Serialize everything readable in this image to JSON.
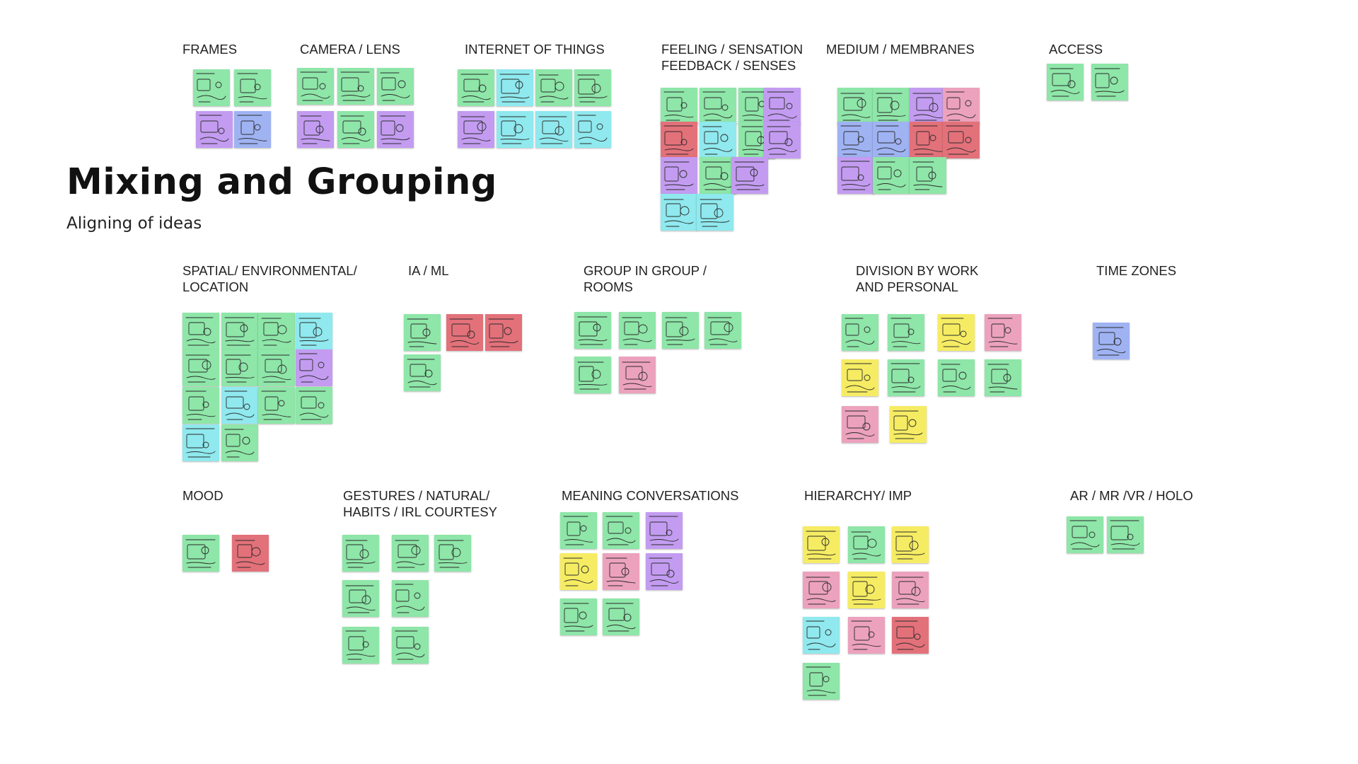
{
  "title": "Mixing and Grouping",
  "subtitle": "Aligning of ideas",
  "colors": {
    "green": "#8ee6a8",
    "cyan": "#8fe9ee",
    "purple": "#c39cf1",
    "blue": "#9fb3f3",
    "red": "#e3717a",
    "yellow": "#f6ec63",
    "pink": "#eca2bd"
  },
  "groups": [
    {
      "label": "FRAMES"
    },
    {
      "label": "CAMERA / LENS"
    },
    {
      "label": "INTERNET OF THINGS"
    },
    {
      "label": "FEELING / SENSATION\nFEEDBACK / SENSES"
    },
    {
      "label": "MEDIUM / MEMBRANES"
    },
    {
      "label": "ACCESS"
    },
    {
      "label": "SPATIAL/ ENVIRONMENTAL/\nLOCATION"
    },
    {
      "label": "IA / ML"
    },
    {
      "label": "GROUP IN GROUP /\nROOMS"
    },
    {
      "label": "DIVISION BY WORK\nAND PERSONAL"
    },
    {
      "label": "TIME ZONES"
    },
    {
      "label": "MOOD"
    },
    {
      "label": "GESTURES / NATURAL/\nHABITS / IRL COURTESY"
    },
    {
      "label": "MEANING CONVERSATIONS"
    },
    {
      "label": "HIERARCHY/ IMP"
    },
    {
      "label": "AR / MR /VR / HOLO"
    }
  ]
}
